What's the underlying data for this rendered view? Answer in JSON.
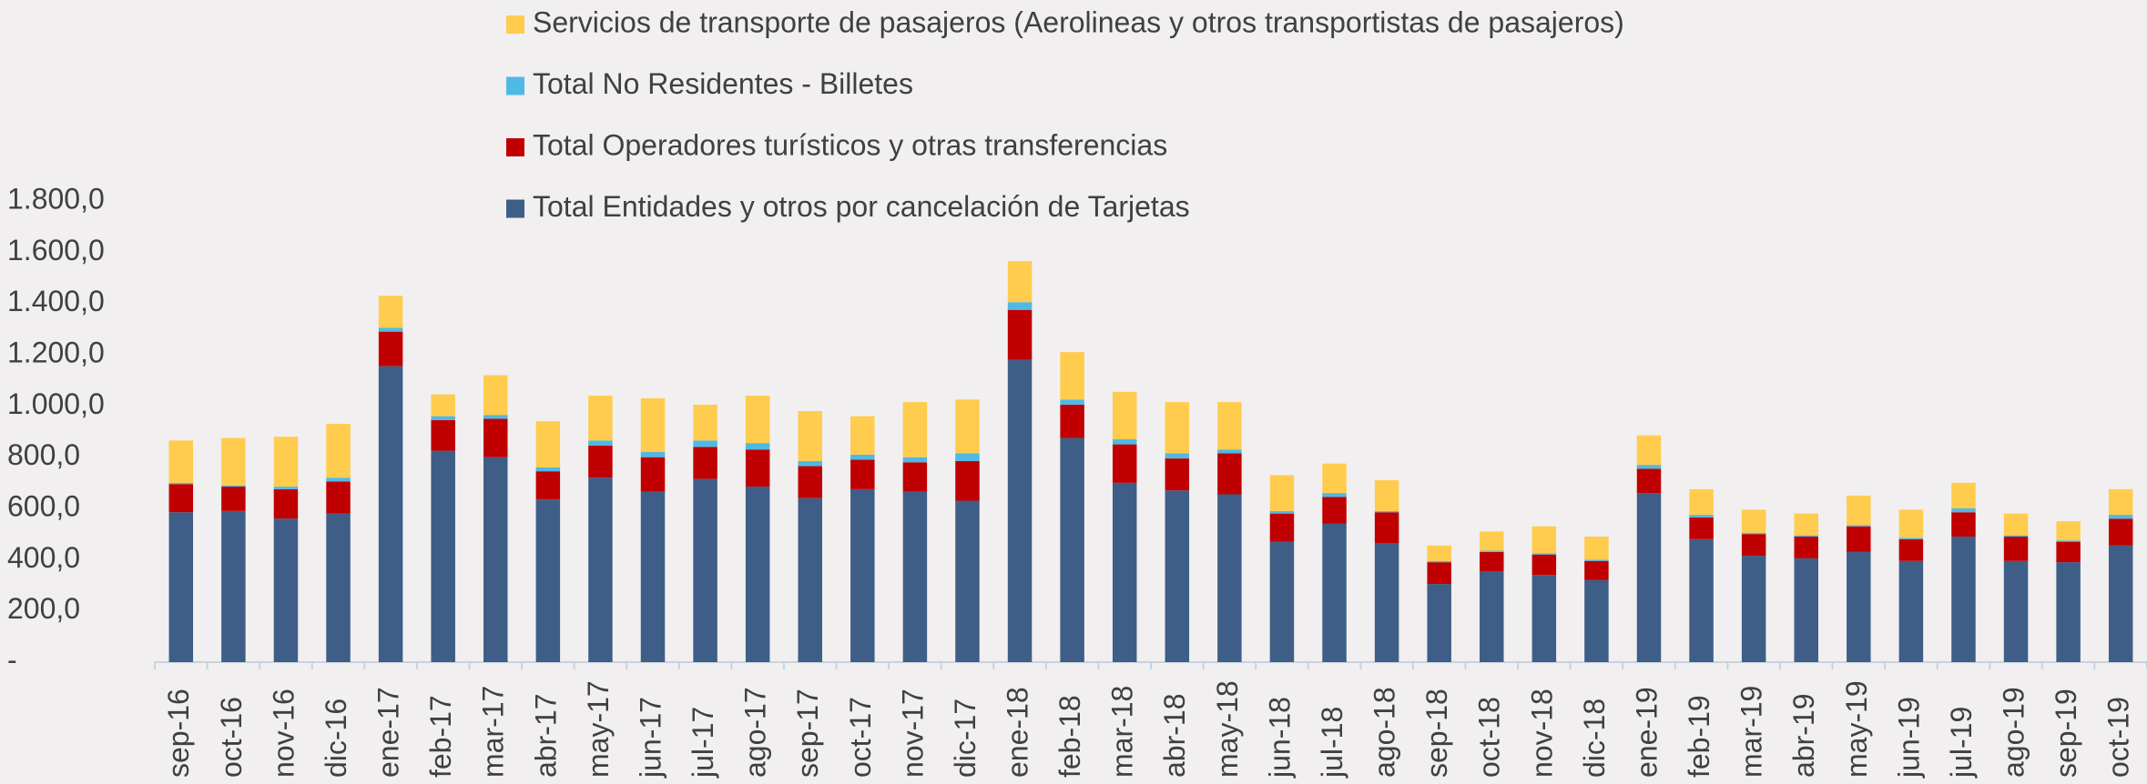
{
  "chart_data": {
    "type": "stacked_bar",
    "categories": [
      "sep-16",
      "oct-16",
      "nov-16",
      "dic-16",
      "ene-17",
      "feb-17",
      "mar-17",
      "abr-17",
      "may-17",
      "jun-17",
      "jul-17",
      "ago-17",
      "sep-17",
      "oct-17",
      "nov-17",
      "dic-17",
      "ene-18",
      "feb-18",
      "mar-18",
      "abr-18",
      "may-18",
      "jun-18",
      "jul-18",
      "ago-18",
      "sep-18",
      "oct-18",
      "nov-18",
      "dic-18",
      "ene-19",
      "feb-19",
      "mar-19",
      "abr-19",
      "may-19",
      "jun-19",
      "jul-19",
      "ago-19",
      "sep-19",
      "oct-19"
    ],
    "series": [
      {
        "name": "Total Entidades y otros por cancelación de Tarjetas",
        "color": "#3e5e87",
        "values": [
          585,
          590,
          560,
          580,
          1155,
          825,
          800,
          635,
          720,
          665,
          715,
          685,
          640,
          675,
          665,
          630,
          1180,
          875,
          700,
          670,
          655,
          470,
          540,
          465,
          305,
          355,
          340,
          320,
          660,
          480,
          415,
          405,
          430,
          395,
          490,
          395,
          390,
          455
        ]
      },
      {
        "name": "Total Operadores turísticos y otras transferencias",
        "color": "#c00000",
        "values": [
          110,
          95,
          115,
          125,
          135,
          120,
          150,
          110,
          125,
          135,
          125,
          145,
          125,
          115,
          115,
          155,
          195,
          130,
          150,
          125,
          160,
          110,
          105,
          120,
          85,
          75,
          80,
          75,
          95,
          85,
          85,
          85,
          100,
          85,
          95,
          95,
          80,
          105
        ]
      },
      {
        "name": "Total No Residentes - Billetes",
        "color": "#4fb9e6",
        "values": [
          5,
          5,
          10,
          15,
          15,
          15,
          15,
          15,
          20,
          20,
          25,
          25,
          20,
          20,
          20,
          30,
          30,
          20,
          20,
          20,
          15,
          10,
          15,
          5,
          5,
          5,
          5,
          5,
          15,
          10,
          5,
          5,
          5,
          5,
          15,
          5,
          5,
          15
        ]
      },
      {
        "name": "Servicios de transporte de pasajeros (Aerolineas y otros transportistas de pasajeros)",
        "color": "#ffcc4d",
        "values": [
          165,
          185,
          195,
          210,
          125,
          85,
          155,
          180,
          175,
          210,
          140,
          185,
          195,
          150,
          215,
          210,
          160,
          185,
          185,
          200,
          185,
          140,
          115,
          120,
          60,
          75,
          105,
          90,
          115,
          100,
          90,
          85,
          115,
          110,
          100,
          85,
          75,
          100
        ]
      }
    ],
    "ylim": [
      0,
      1800
    ],
    "yticks": [
      {
        "value": 0,
        "label": "-"
      },
      {
        "value": 200,
        "label": "200,0"
      },
      {
        "value": 400,
        "label": "400,0"
      },
      {
        "value": 600,
        "label": "600,0"
      },
      {
        "value": 800,
        "label": "800,0"
      },
      {
        "value": 1000,
        "label": "1.000,0"
      },
      {
        "value": 1200,
        "label": "1.200,0"
      },
      {
        "value": 1400,
        "label": "1.400,0"
      },
      {
        "value": 1600,
        "label": "1.600,0"
      },
      {
        "value": 1800,
        "label": "1.800,0"
      }
    ],
    "grid": false,
    "legend": "top"
  }
}
